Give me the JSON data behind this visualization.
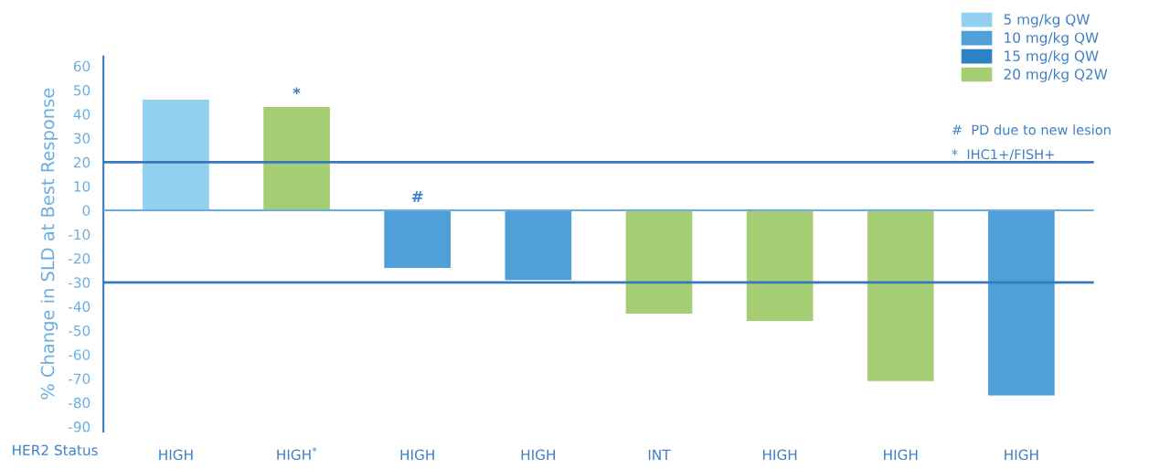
{
  "chart_data": {
    "type": "bar",
    "xlabel": "HER2 Status",
    "ylabel": "% Change in SLD at Best Response",
    "categories": [
      "HIGH",
      "HIGH$^{*}$",
      "HIGH",
      "HIGH",
      "INT",
      "HIGH",
      "HIGH",
      "HIGH"
    ],
    "series": [
      {
        "name": "5 mg/kg QW",
        "color": "#92cff0",
        "values": [
          46,
          null,
          null,
          null,
          null,
          null,
          null,
          null
        ]
      },
      {
        "name": "10 mg/kg QW",
        "color": "#4fa0d8",
        "values": [
          null,
          null,
          -24,
          -29,
          null,
          null,
          null,
          -77
        ]
      },
      {
        "name": "15 mg/kg QW",
        "color": "#2f82c2",
        "values": [
          null,
          null,
          null,
          null,
          null,
          null,
          null,
          null
        ]
      },
      {
        "name": "20 mg/kg Q2W",
        "color": "#a5cd73",
        "values": [
          null,
          43,
          null,
          null,
          -43,
          -46,
          -71,
          null
        ]
      }
    ],
    "ylim": [
      -92,
      64
    ],
    "yticks": [
      60,
      50,
      40,
      30,
      20,
      10,
      0,
      -10,
      -20,
      -30,
      -40,
      -50,
      -60,
      -70,
      -80,
      -90
    ],
    "ref_lines": [
      {
        "axis": "y",
        "value": 0,
        "color": "#6aaee0"
      },
      {
        "axis": "y",
        "value": 20,
        "color": "#3a78be"
      },
      {
        "axis": "y",
        "value": -30,
        "color": "#3a78be"
      }
    ],
    "annotations": [
      {
        "text": "*",
        "x": "HIGH$^{*}$",
        "y": 43
      },
      "#",
      "#  PD due to new lesion",
      "*  IHC1+/FISH+"
    ],
    "legend": "top right",
    "grid": false
  }
}
